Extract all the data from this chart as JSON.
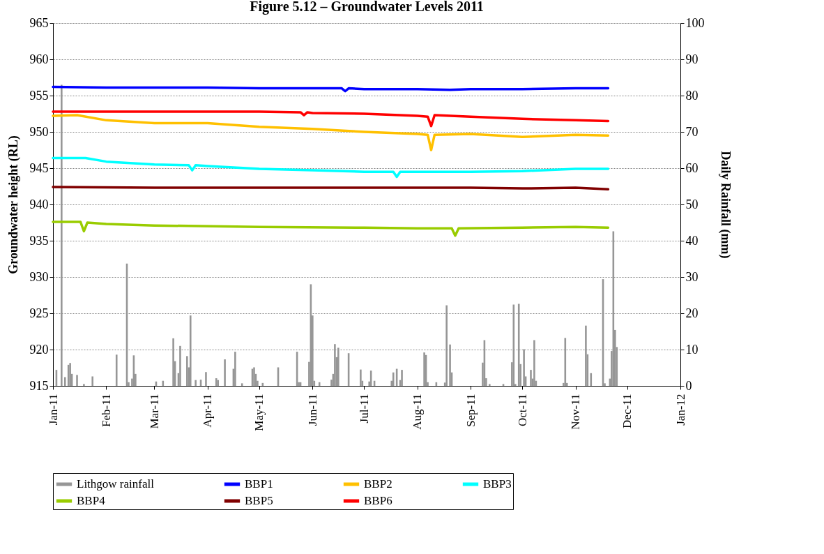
{
  "chart_data": {
    "type": "line",
    "title": "Figure 5.12 – Groundwater Levels 2011",
    "ylabel": "Groundwater height (RL)",
    "y2label": "Daily Rainfall (mm)",
    "xlim": [
      "2011-01-01",
      "2012-01-01"
    ],
    "xticks": [
      {
        "value": "2011-01-01",
        "label": "Jan-11"
      },
      {
        "value": "2011-02-01",
        "label": "Feb-11"
      },
      {
        "value": "2011-03-01",
        "label": "Mar-11"
      },
      {
        "value": "2011-04-01",
        "label": "Apr-11"
      },
      {
        "value": "2011-05-01",
        "label": "May-11"
      },
      {
        "value": "2011-06-01",
        "label": "Jun-11"
      },
      {
        "value": "2011-07-01",
        "label": "Jul-11"
      },
      {
        "value": "2011-08-01",
        "label": "Aug-11"
      },
      {
        "value": "2011-09-01",
        "label": "Sep-11"
      },
      {
        "value": "2011-10-01",
        "label": "Oct-11"
      },
      {
        "value": "2011-11-01",
        "label": "Nov-11"
      },
      {
        "value": "2011-12-01",
        "label": "Dec-11"
      },
      {
        "value": "2012-01-01",
        "label": "Jan-12"
      }
    ],
    "ylim": [
      915,
      965
    ],
    "yticks": [
      915,
      920,
      925,
      930,
      935,
      940,
      945,
      950,
      955,
      960,
      965
    ],
    "y2lim": [
      0,
      100
    ],
    "y2ticks": [
      0,
      10,
      20,
      30,
      40,
      50,
      60,
      70,
      80,
      90,
      100
    ],
    "grid": "y",
    "legend": "bottom",
    "marker": "none",
    "line_style": "solid",
    "series": [
      {
        "name": "Lithgow rainfall",
        "type": "bar",
        "axis": "y2",
        "color": "#969696",
        "x": [
          "2011-01-03",
          "2011-01-06",
          "2011-01-08",
          "2011-01-10",
          "2011-01-11",
          "2011-01-12",
          "2011-01-15",
          "2011-01-19",
          "2011-01-24",
          "2011-02-07",
          "2011-02-13",
          "2011-02-14",
          "2011-02-16",
          "2011-02-17",
          "2011-02-18",
          "2011-03-02",
          "2011-03-06",
          "2011-03-12",
          "2011-03-13",
          "2011-03-15",
          "2011-03-16",
          "2011-03-20",
          "2011-03-21",
          "2011-03-22",
          "2011-03-25",
          "2011-03-28",
          "2011-03-31",
          "2011-04-06",
          "2011-04-07",
          "2011-04-11",
          "2011-04-16",
          "2011-04-17",
          "2011-04-21",
          "2011-04-27",
          "2011-04-28",
          "2011-04-29",
          "2011-04-30",
          "2011-05-03",
          "2011-05-12",
          "2011-05-23",
          "2011-05-24",
          "2011-05-25",
          "2011-05-30",
          "2011-05-31",
          "2011-06-01",
          "2011-06-02",
          "2011-06-05",
          "2011-06-12",
          "2011-06-13",
          "2011-06-14",
          "2011-06-15",
          "2011-06-16",
          "2011-06-22",
          "2011-06-29",
          "2011-06-30",
          "2011-07-04",
          "2011-07-05",
          "2011-07-07",
          "2011-07-17",
          "2011-07-18",
          "2011-07-20",
          "2011-07-22",
          "2011-07-23",
          "2011-08-05",
          "2011-08-06",
          "2011-08-07",
          "2011-08-12",
          "2011-08-17",
          "2011-08-18",
          "2011-08-20",
          "2011-08-21",
          "2011-09-08",
          "2011-09-09",
          "2011-09-10",
          "2011-09-12",
          "2011-09-20",
          "2011-09-25",
          "2011-09-26",
          "2011-09-27",
          "2011-09-29",
          "2011-09-30",
          "2011-10-02",
          "2011-10-03",
          "2011-10-06",
          "2011-10-07",
          "2011-10-08",
          "2011-10-09",
          "2011-10-25",
          "2011-10-26",
          "2011-10-27",
          "2011-11-07",
          "2011-11-08",
          "2011-11-10",
          "2011-11-17",
          "2011-11-18",
          "2011-11-21",
          "2011-11-22",
          "2011-11-23",
          "2011-11-24",
          "2011-11-25"
        ],
        "values": [
          4.4,
          83,
          2.4,
          5.8,
          6.3,
          3.3,
          3,
          0.5,
          2.6,
          8.6,
          33.7,
          1,
          2,
          8.4,
          3.3,
          1.2,
          1.4,
          13.1,
          6.8,
          3.5,
          11,
          8.2,
          5.1,
          19.4,
          1.6,
          1.7,
          3.8,
          2.1,
          1.6,
          7.3,
          4.7,
          9.4,
          0.7,
          4.7,
          5.1,
          3.3,
          1.4,
          0.8,
          5.1,
          9.4,
          1,
          1,
          6.6,
          28,
          19.4,
          1.4,
          1,
          1.7,
          3.3,
          11.5,
          7.9,
          10.5,
          9,
          4.5,
          1.4,
          1.2,
          4.2,
          1.4,
          1.4,
          3.7,
          4.7,
          1.6,
          4.4,
          9.2,
          8.5,
          1,
          1,
          0.9,
          22.2,
          11.4,
          3.7,
          6.4,
          12.6,
          2.1,
          0.5,
          0.5,
          6.5,
          22.4,
          0.5,
          22.6,
          6,
          10.1,
          2.6,
          4.4,
          2,
          12.6,
          1.4,
          0.8,
          13.2,
          0.8,
          16.6,
          8.7,
          3.5,
          29.4,
          0.7,
          2,
          9.6,
          42.6,
          15.4,
          10.7
        ]
      },
      {
        "name": "BBP1",
        "color": "#0000ff",
        "x": [
          "2011-01-01",
          "2011-02-01",
          "2011-03-01",
          "2011-04-01",
          "2011-05-01",
          "2011-06-01",
          "2011-06-18",
          "2011-06-20",
          "2011-06-22",
          "2011-07-01",
          "2011-08-01",
          "2011-08-20",
          "2011-09-01",
          "2011-10-01",
          "2011-11-01",
          "2011-11-20"
        ],
        "values": [
          956.2,
          956.1,
          956.1,
          956.1,
          956.0,
          956.0,
          956.0,
          955.6,
          956.0,
          955.9,
          955.9,
          955.8,
          955.9,
          955.9,
          956.0,
          956.0
        ]
      },
      {
        "name": "BBP2",
        "color": "#ffc000",
        "x": [
          "2011-01-01",
          "2011-01-15",
          "2011-02-01",
          "2011-03-01",
          "2011-04-01",
          "2011-05-01",
          "2011-06-01",
          "2011-07-01",
          "2011-08-01",
          "2011-08-07",
          "2011-08-09",
          "2011-08-11",
          "2011-09-01",
          "2011-10-01",
          "2011-11-01",
          "2011-11-20"
        ],
        "values": [
          952.2,
          952.3,
          951.6,
          951.2,
          951.2,
          950.7,
          950.4,
          950.0,
          949.7,
          949.6,
          947.5,
          949.6,
          949.7,
          949.3,
          949.6,
          949.5
        ]
      },
      {
        "name": "BBP3",
        "color": "#00ffff",
        "x": [
          "2011-01-01",
          "2011-01-20",
          "2011-02-01",
          "2011-03-01",
          "2011-03-21",
          "2011-03-23",
          "2011-03-25",
          "2011-04-01",
          "2011-05-01",
          "2011-06-01",
          "2011-07-01",
          "2011-07-18",
          "2011-07-20",
          "2011-07-22",
          "2011-08-01",
          "2011-09-01",
          "2011-10-01",
          "2011-11-01",
          "2011-11-20"
        ],
        "values": [
          946.4,
          946.4,
          945.9,
          945.5,
          945.4,
          944.7,
          945.4,
          945.3,
          944.9,
          944.7,
          944.5,
          944.5,
          943.8,
          944.5,
          944.5,
          944.5,
          944.6,
          944.9,
          944.9
        ]
      },
      {
        "name": "BBP4",
        "color": "#99cc00",
        "x": [
          "2011-01-01",
          "2011-01-17",
          "2011-01-19",
          "2011-01-21",
          "2011-02-01",
          "2011-03-01",
          "2011-05-01",
          "2011-07-01",
          "2011-08-01",
          "2011-08-21",
          "2011-08-23",
          "2011-08-25",
          "2011-10-01",
          "2011-11-01",
          "2011-11-20"
        ],
        "values": [
          937.6,
          937.6,
          936.3,
          937.5,
          937.3,
          937.1,
          936.9,
          936.8,
          936.7,
          936.7,
          935.7,
          936.7,
          936.8,
          936.9,
          936.8
        ]
      },
      {
        "name": "BBP5",
        "color": "#800000",
        "x": [
          "2011-01-01",
          "2011-03-01",
          "2011-05-01",
          "2011-07-01",
          "2011-09-01",
          "2011-10-01",
          "2011-11-01",
          "2011-11-20"
        ],
        "values": [
          942.4,
          942.3,
          942.3,
          942.3,
          942.3,
          942.2,
          942.3,
          942.1
        ]
      },
      {
        "name": "BBP6",
        "color": "#ff0000",
        "x": [
          "2011-01-01",
          "2011-02-01",
          "2011-03-01",
          "2011-04-01",
          "2011-05-01",
          "2011-05-25",
          "2011-05-27",
          "2011-05-29",
          "2011-06-01",
          "2011-07-01",
          "2011-08-01",
          "2011-08-07",
          "2011-08-09",
          "2011-08-11",
          "2011-09-01",
          "2011-10-01",
          "2011-11-01",
          "2011-11-20"
        ],
        "values": [
          952.8,
          952.8,
          952.8,
          952.8,
          952.8,
          952.7,
          952.3,
          952.7,
          952.6,
          952.5,
          952.2,
          952.1,
          950.8,
          952.3,
          952.1,
          951.8,
          951.6,
          951.5
        ]
      }
    ]
  }
}
